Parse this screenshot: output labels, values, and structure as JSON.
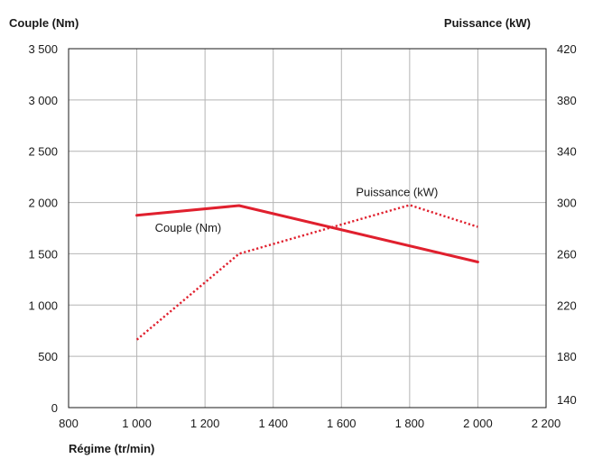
{
  "chart_data": {
    "type": "line",
    "title": "",
    "xlabel": "Régime (tr/min)",
    "ylabel_left": "Couple (Nm)",
    "ylabel_right": "Puissance (kW)",
    "xlim": [
      800,
      2200
    ],
    "ylim_left": [
      0,
      3500
    ],
    "ylim_right": [
      140,
      420
    ],
    "x_ticks": [
      800,
      1000,
      1200,
      1400,
      1600,
      1800,
      2000,
      2200
    ],
    "x_tick_labels": [
      "800",
      "1 000",
      "1 200",
      "1 400",
      "1 600",
      "1 800",
      "2 000",
      "2 200"
    ],
    "y_left_ticks": [
      0,
      500,
      1000,
      1500,
      2000,
      2500,
      3000,
      3500
    ],
    "y_left_tick_labels": [
      "0",
      "500",
      "1 000",
      "1 500",
      "2 000",
      "2 500",
      "3 000",
      "3 500"
    ],
    "y_right_ticks": [
      140,
      180,
      220,
      260,
      300,
      340,
      380,
      420
    ],
    "y_right_tick_labels": [
      "140",
      "180",
      "220",
      "260",
      "300",
      "340",
      "380",
      "420"
    ],
    "grid": true,
    "series": [
      {
        "name": "Couple (Nm)",
        "axis": "left",
        "style": "solid",
        "color": "#e0202e",
        "points": [
          [
            1000,
            1875
          ],
          [
            1300,
            1970
          ],
          [
            2000,
            1420
          ]
        ]
      },
      {
        "name": "Puissance (kW)",
        "axis": "right",
        "style": "dotted",
        "color": "#e0202e",
        "points": [
          [
            1000,
            193
          ],
          [
            1300,
            260
          ],
          [
            1800,
            298
          ],
          [
            2000,
            281
          ]
        ]
      }
    ],
    "annotations": [
      {
        "text": "Couple (Nm)",
        "series": 0
      },
      {
        "text": "Puissance (kW)",
        "series": 1
      }
    ]
  }
}
